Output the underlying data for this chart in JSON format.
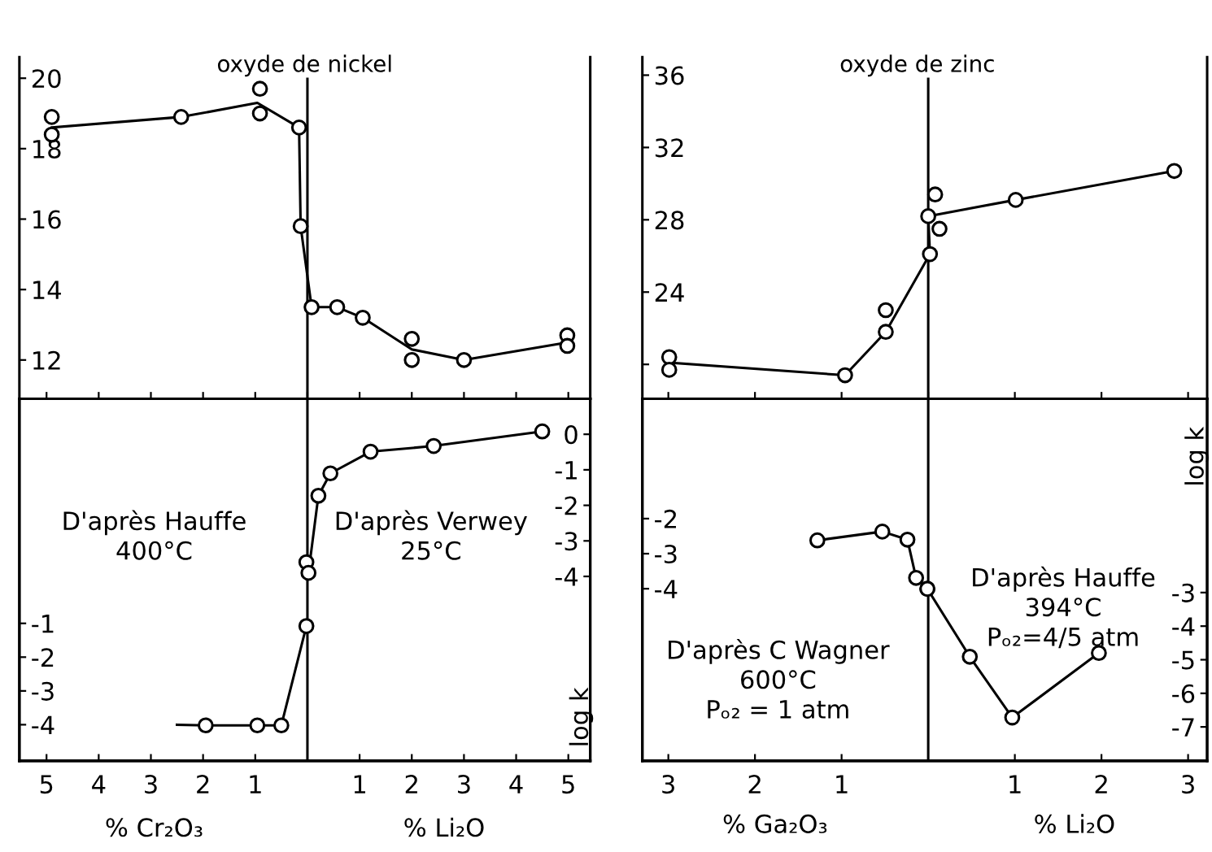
{
  "chart_data": [
    {
      "type": "line",
      "title": "oxyde de nickel",
      "xlim": [
        -5.52,
        5.42
      ],
      "ylim": [
        10.9,
        20.6
      ],
      "xticks": [
        {
          "value": -5,
          "label": null
        },
        {
          "value": -4,
          "label": null
        },
        {
          "value": -3,
          "label": null
        },
        {
          "value": -2,
          "label": null
        },
        {
          "value": -1,
          "label": null
        },
        {
          "value": 0,
          "label": null
        },
        {
          "value": 1,
          "label": null
        },
        {
          "value": 2,
          "label": null
        },
        {
          "value": 3,
          "label": null
        },
        {
          "value": 4,
          "label": null
        },
        {
          "value": 5,
          "label": null
        }
      ],
      "yticks": [
        12,
        14,
        16,
        18,
        20
      ],
      "tick_labels": "y",
      "grid": false,
      "ref_lines": [
        {
          "axis": "x",
          "value": 0,
          "color": "#000000"
        }
      ],
      "series": [
        {
          "color": "#000000",
          "marker": "none",
          "x": [
            -4.9,
            -2.42,
            -0.96,
            -0.16,
            -0.13,
            0.08,
            0.57,
            1.06,
            2.0,
            3.0,
            4.98
          ],
          "values": [
            18.6,
            18.9,
            19.3,
            18.6,
            15.8,
            13.5,
            13.5,
            13.2,
            12.3,
            12.0,
            12.5
          ]
        },
        {
          "type": "scatter",
          "color": "#000000",
          "marker": "circle",
          "x": [
            -4.9,
            -4.9,
            -2.42,
            -0.91,
            -0.91,
            -0.16,
            -0.13,
            0.08,
            0.57,
            1.06,
            2.0,
            2.0,
            3.0,
            4.98,
            4.98
          ],
          "values": [
            18.4,
            18.9,
            18.9,
            19.0,
            19.7,
            18.6,
            15.8,
            13.5,
            13.5,
            13.2,
            12.6,
            12.0,
            12.0,
            12.7,
            12.4
          ]
        }
      ]
    },
    {
      "type": "line",
      "xlabel": "% Cr₂O₃",
      "y2label": "log k",
      "xlim": [
        -5.52,
        5.42
      ],
      "ylim": [
        -5.07,
        5.65
      ],
      "y2lim": [
        -9.19,
        1.0
      ],
      "xticks": [
        {
          "value": -5,
          "label": "5"
        },
        {
          "value": -4,
          "label": "4"
        },
        {
          "value": -3,
          "label": "3"
        },
        {
          "value": -2,
          "label": "2"
        },
        {
          "value": -1,
          "label": "1"
        },
        1,
        2,
        3,
        4,
        5
      ],
      "yticks": [
        -1,
        -2,
        -3,
        -4
      ],
      "y2ticks": [
        0,
        -1,
        -2,
        -3,
        -4
      ],
      "grid": false,
      "ref_lines": [
        {
          "axis": "x",
          "value": 0,
          "color": "#000000"
        }
      ],
      "annotations": [
        "% Li₂O",
        "D'après Hauffe\n400°C",
        "D'après Verwey\n25°C"
      ],
      "series": [
        {
          "color": "#000000",
          "marker": "none",
          "x": [
            -2.5,
            -1.95,
            -0.96,
            -0.5,
            -0.02
          ],
          "values": [
            -4.0,
            -4.02,
            -4.02,
            -4.02,
            -1.08
          ]
        },
        {
          "type": "scatter",
          "color": "#000000",
          "marker": "circle",
          "x": [
            -1.95,
            -0.96,
            -0.5,
            -0.02
          ],
          "values": [
            -4.02,
            -4.02,
            -4.02,
            -1.08
          ]
        },
        {
          "axis": "y2",
          "color": "#000000",
          "marker": "circle",
          "x": [
            -0.02,
            0.02,
            0.21,
            0.44,
            1.21,
            2.42,
            4.5
          ],
          "values": [
            -3.6,
            -3.9,
            -1.73,
            -1.1,
            -0.49,
            -0.33,
            0.08
          ]
        }
      ]
    },
    {
      "type": "line",
      "title": "oxyde de zinc",
      "xlim": [
        -3.3,
        3.22
      ],
      "ylim": [
        18.1,
        37.0
      ],
      "xticks": [
        {
          "value": -3,
          "label": null
        },
        {
          "value": -2,
          "label": null
        },
        {
          "value": -1,
          "label": null
        },
        {
          "value": 0,
          "label": null
        },
        {
          "value": 1,
          "label": null
        },
        {
          "value": 2,
          "label": null
        },
        {
          "value": 3,
          "label": null
        }
      ],
      "yticks": [
        {
          "value": 20,
          "label": null
        },
        24,
        28,
        32,
        36
      ],
      "tick_labels": "y",
      "grid": false,
      "ref_lines": [
        {
          "axis": "x",
          "value": 0,
          "color": "#000000"
        }
      ],
      "series": [
        {
          "color": "#000000",
          "marker": "none",
          "x": [
            -2.99,
            -0.96,
            -0.49,
            0.02,
            0.0,
            1.01,
            2.84
          ],
          "values": [
            20.1,
            19.4,
            21.8,
            26.1,
            28.2,
            29.1,
            30.7
          ]
        },
        {
          "type": "scatter",
          "color": "#000000",
          "marker": "circle",
          "x": [
            -2.99,
            -2.99,
            -0.96,
            -0.49,
            -0.49,
            0.0,
            0.02,
            0.08,
            0.13,
            1.01,
            2.84
          ],
          "values": [
            20.4,
            19.7,
            19.4,
            23.0,
            21.8,
            28.2,
            26.1,
            29.4,
            27.5,
            29.1,
            30.7
          ]
        }
      ]
    },
    {
      "type": "line",
      "xlabel": "% Ga₂O₃",
      "y2label": "log k",
      "xlim": [
        -3.3,
        3.22
      ],
      "ylim": [
        -8.91,
        1.42
      ],
      "y2lim": [
        -8.01,
        2.77
      ],
      "xticks": [
        {
          "value": -3,
          "label": "3"
        },
        {
          "value": -2,
          "label": "2"
        },
        {
          "value": -1,
          "label": "1"
        },
        1,
        2,
        3
      ],
      "yticks": [
        -2,
        -3,
        -4
      ],
      "y2ticks": [
        -3,
        -4,
        -5,
        -6,
        -7
      ],
      "grid": false,
      "ref_lines": [
        {
          "axis": "x",
          "value": 0,
          "color": "#000000"
        }
      ],
      "annotations": [
        "% Li₂O",
        "D'après C Wagner\n600°C\nPₒ₂ = 1 atm",
        "D'après Hauffe\n394°C\nPₒ₂=4/5 atm"
      ],
      "series": [
        {
          "color": "#000000",
          "marker": "circle",
          "x": [
            -1.28,
            -0.53,
            -0.24,
            -0.14,
            -0.01
          ],
          "values": [
            -2.62,
            -2.37,
            -2.6,
            -3.69,
            -4.0
          ]
        },
        {
          "axis": "y2",
          "color": "#000000",
          "marker": "circle",
          "x": [
            -0.01,
            0.48,
            0.97,
            1.97
          ],
          "values": [
            -2.89,
            -4.91,
            -6.72,
            -4.8
          ]
        }
      ]
    }
  ]
}
